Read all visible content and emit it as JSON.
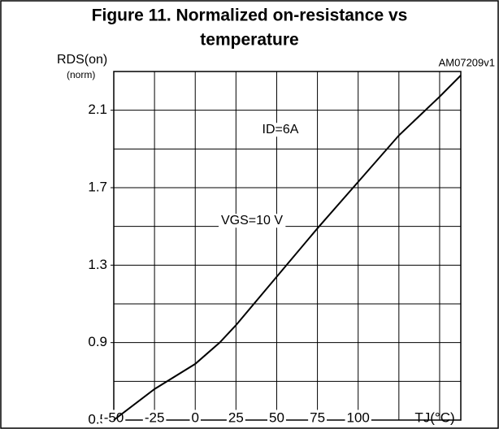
{
  "chart_data": {
    "type": "line",
    "title": "Figure 11. Normalized on-resistance vs",
    "subtitle": "temperature",
    "code": "AM07209v1",
    "y_label": "RDS(on)",
    "y_unit": "(norm)",
    "x_label": "TJ(°C)",
    "annotations": [
      "ID=6A",
      "VGS=10 V"
    ],
    "x": [
      -50,
      -25,
      0,
      15,
      25,
      50,
      75,
      100,
      125,
      150,
      163
    ],
    "series": [
      {
        "name": "RDS(on)",
        "color": "#000000",
        "values": [
          0.5,
          0.66,
          0.79,
          0.9,
          0.99,
          1.24,
          1.49,
          1.73,
          1.97,
          2.17,
          2.28
        ]
      }
    ],
    "xlim": [
      -50,
      163
    ],
    "xticks": [
      -50,
      -25,
      0,
      25,
      50,
      75,
      100
    ],
    "xgrid": [
      -25,
      0,
      25,
      50,
      75,
      100,
      125,
      150
    ],
    "ylim": [
      0.5,
      2.3
    ],
    "yticks": [
      0.5,
      0.9,
      1.3,
      1.7,
      2.1
    ],
    "ygrid": [
      0.7,
      0.9,
      1.1,
      1.3,
      1.5,
      1.7,
      1.9,
      2.1
    ],
    "grid": true
  }
}
